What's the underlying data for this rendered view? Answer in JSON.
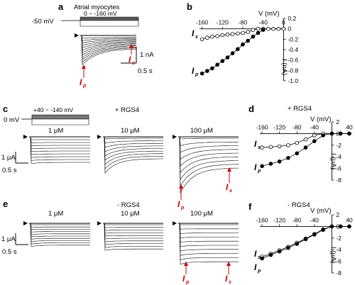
{
  "panel_a": {
    "letter": "a",
    "title": "Atrial myocytes",
    "holding": "-50 mV",
    "step_range": "0 ~ -160 mV",
    "scale_y": "1 nA",
    "scale_x": "0.5 s",
    "label_p": "I",
    "label_p_sub": "p",
    "label_s": "I",
    "label_s_sub": "s"
  },
  "panel_b": {
    "letter": "b",
    "xlabel": "V (mV)",
    "ylabel": "I (nA)",
    "x_ticks": [
      "-160",
      "-120",
      "-80",
      "-40",
      "0"
    ],
    "y_ticks": [
      "0.2",
      "0",
      "-0.2",
      "-0.4",
      "-0.6",
      "-0.8",
      "-1.0"
    ],
    "label_s": "I",
    "label_s_sub": "s",
    "label_p": "I",
    "label_p_sub": "p"
  },
  "panel_c": {
    "letter": "c",
    "holding": "0 mV",
    "step_range": "+40 ~ -140 mV",
    "condition": "+ RGS4",
    "concentrations": [
      "1 μM",
      "10 μM",
      "100 μM"
    ],
    "scale_y": "1 μA",
    "scale_x": "0.5 s",
    "label_p": "I",
    "label_p_sub": "p",
    "label_s": "I",
    "label_s_sub": "s"
  },
  "panel_d": {
    "letter": "d",
    "condition": "+ RGS4",
    "xlabel": "V (mV)",
    "ylabel": "I (μA)",
    "x_ticks": [
      "-160",
      "-120",
      "-80",
      "-40",
      "40"
    ],
    "y_ticks": [
      "2",
      "0",
      "-2",
      "-4",
      "-6",
      "-8"
    ],
    "label_s": "I",
    "label_s_sub": "s",
    "label_p": "I",
    "label_p_sub": "p"
  },
  "panel_e": {
    "letter": "e",
    "condition": "- RGS4",
    "concentrations": [
      "1 μM",
      "10 μM",
      "100 μM"
    ],
    "scale_y": "1 μA",
    "scale_x": "0.5 s",
    "label_p": "I",
    "label_p_sub": "p",
    "label_s": "I",
    "label_s_sub": "s"
  },
  "panel_f": {
    "letter": "f",
    "condition": "- RGS4",
    "xlabel": "V (mV)",
    "ylabel": "I (μA)",
    "x_ticks": [
      "-160",
      "-120",
      "-80",
      "-40",
      "40"
    ],
    "y_ticks": [
      "2",
      "0",
      "-2",
      "-4",
      "-6",
      "-8"
    ],
    "label_s": "I",
    "label_s_sub": "s",
    "label_p": "I",
    "label_p_sub": "p"
  },
  "chart_data": [
    {
      "panel": "b",
      "type": "line",
      "xlabel": "V (mV)",
      "ylabel": "I (nA)",
      "xlim": [
        -165,
        5
      ],
      "ylim": [
        -1.0,
        0.2
      ],
      "series": [
        {
          "name": "Is",
          "marker": "open",
          "x": [
            -160,
            -150,
            -140,
            -130,
            -120,
            -110,
            -100,
            -90,
            -80,
            -70,
            -60,
            -50,
            -40,
            -30,
            -20,
            -10,
            0
          ],
          "y": [
            -0.2,
            -0.17,
            -0.15,
            -0.14,
            -0.12,
            -0.11,
            -0.1,
            -0.09,
            -0.08,
            -0.06,
            -0.02,
            0.0,
            0.0,
            0.0,
            0.0,
            0.0,
            0.0
          ]
        },
        {
          "name": "Ip",
          "marker": "filled",
          "x": [
            -160,
            -150,
            -140,
            -130,
            -120,
            -110,
            -100,
            -90,
            -80,
            -70,
            -60,
            -50,
            -40
          ],
          "y": [
            -0.86,
            -0.81,
            -0.76,
            -0.69,
            -0.62,
            -0.55,
            -0.47,
            -0.39,
            -0.3,
            -0.23,
            -0.15,
            -0.08,
            -0.02
          ]
        }
      ]
    },
    {
      "panel": "d",
      "type": "line",
      "xlabel": "V (mV)",
      "ylabel": "I (μA)",
      "xlim": [
        -165,
        45
      ],
      "ylim": [
        -8,
        2
      ],
      "series": [
        {
          "name": "Is",
          "marker": "open",
          "x": [
            -160,
            -140,
            -120,
            -100,
            -80,
            -60,
            -40,
            -20,
            0,
            20,
            40
          ],
          "y": [
            -2.4,
            -2.3,
            -2.2,
            -2.0,
            -1.6,
            -1.0,
            -0.3,
            0.0,
            0.0,
            0.0,
            0.0
          ]
        },
        {
          "name": "Ip",
          "marker": "filled",
          "x": [
            -160,
            -140,
            -120,
            -100,
            -80,
            -60,
            -40,
            -20,
            0,
            20,
            40
          ],
          "y": [
            -5.6,
            -5.2,
            -4.8,
            -4.2,
            -3.4,
            -2.4,
            -1.3,
            -0.3,
            0.0,
            0.0,
            0.0
          ]
        }
      ]
    },
    {
      "panel": "f",
      "type": "line",
      "xlabel": "V (mV)",
      "ylabel": "I (μA)",
      "xlim": [
        -165,
        45
      ],
      "ylim": [
        -8,
        2
      ],
      "series": [
        {
          "name": "Is",
          "marker": "open",
          "x": [
            -160,
            -140,
            -120,
            -100,
            -80,
            -60,
            -40,
            -20,
            0,
            20,
            40
          ],
          "y": [
            -5.2,
            -4.7,
            -4.1,
            -3.5,
            -2.8,
            -2.1,
            -1.3,
            -0.5,
            0.0,
            0.0,
            0.0
          ]
        },
        {
          "name": "Ip",
          "marker": "filled",
          "x": [
            -160,
            -140,
            -120,
            -100,
            -80,
            -60,
            -40,
            -20,
            0,
            20,
            40
          ],
          "y": [
            -5.5,
            -4.9,
            -4.3,
            -3.7,
            -3.0,
            -2.2,
            -1.4,
            -0.6,
            0.0,
            0.0,
            0.0
          ]
        }
      ]
    }
  ]
}
